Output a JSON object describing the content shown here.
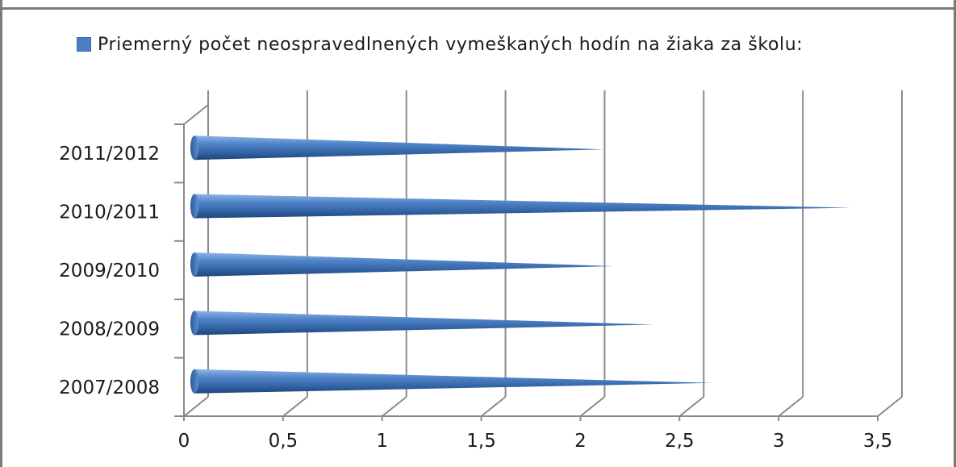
{
  "legend": {
    "label": "Priemerný počet neospravedlnených vymeškaných hodín na žiaka za školu:",
    "color": "#4a7ec4"
  },
  "chart_data": {
    "type": "bar",
    "orientation": "horizontal",
    "style": "3d-cone",
    "categories": [
      "2007/2008",
      "2008/2009",
      "2009/2010",
      "2010/2011",
      "2011/2012"
    ],
    "series": [
      {
        "name": "Priemerný počet neospravedlnených vymeškaných hodín na žiaka za školu:",
        "values": [
          2.6,
          2.3,
          2.1,
          3.3,
          2.05
        ],
        "color": "#4a7ec4"
      }
    ],
    "xlim": [
      0,
      3.5
    ],
    "xticks": [
      "0",
      "0,5",
      "1",
      "1,5",
      "2",
      "2,5",
      "3",
      "3,5"
    ],
    "grid": true,
    "legend_position": "top"
  }
}
